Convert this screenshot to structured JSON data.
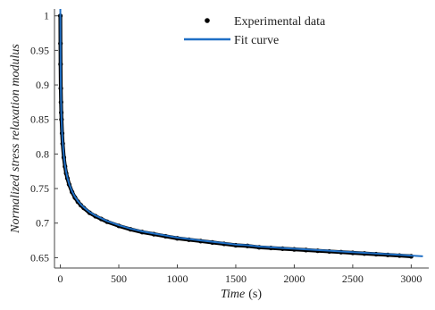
{
  "chart_data": {
    "type": "scatter",
    "xlabel": "Time",
    "xlabel_unit": "(s)",
    "ylabel": "Normalized stress relaxation modulus",
    "xlim": [
      -50,
      3150
    ],
    "ylim": [
      0.635,
      1.01
    ],
    "x_ticks": [
      0,
      500,
      1000,
      1500,
      2000,
      2500,
      3000
    ],
    "x_tick_labels": [
      "0",
      "500",
      "1000",
      "1500",
      "2000",
      "2500",
      "3000"
    ],
    "y_ticks": [
      0.65,
      0.7,
      0.75,
      0.8,
      0.85,
      0.9,
      0.95,
      1.0
    ],
    "y_tick_labels": [
      "0.65",
      "0.7",
      "0.75",
      "0.8",
      "0.85",
      "0.9",
      "0.95",
      "1"
    ],
    "grid": false,
    "legend_position": "top-right",
    "series": [
      {
        "name": "Experimental data",
        "kind": "scatter",
        "color": "#000000",
        "marker": "circle",
        "x": [
          0,
          1,
          2,
          4,
          6,
          8,
          10,
          15,
          20,
          30,
          40,
          50,
          60,
          75,
          100,
          125,
          150,
          175,
          200,
          250,
          300,
          350,
          400,
          500,
          600,
          700,
          800,
          900,
          1000,
          1100,
          1200,
          1300,
          1400,
          1500,
          1600,
          1700,
          1800,
          1900,
          2000,
          2100,
          2200,
          2300,
          2400,
          2500,
          2600,
          2700,
          2800,
          2900,
          3000
        ],
        "y": [
          1.0,
          0.96,
          0.93,
          0.895,
          0.875,
          0.86,
          0.85,
          0.83,
          0.815,
          0.795,
          0.782,
          0.772,
          0.765,
          0.756,
          0.745,
          0.737,
          0.731,
          0.726,
          0.722,
          0.715,
          0.71,
          0.706,
          0.702,
          0.696,
          0.691,
          0.687,
          0.684,
          0.681,
          0.678,
          0.676,
          0.674,
          0.672,
          0.67,
          0.668,
          0.667,
          0.665,
          0.664,
          0.663,
          0.662,
          0.661,
          0.66,
          0.659,
          0.658,
          0.657,
          0.656,
          0.655,
          0.654,
          0.653,
          0.652
        ]
      },
      {
        "name": "Fit curve",
        "kind": "line",
        "color": "#1f6fc5",
        "x": [
          0,
          1,
          2,
          4,
          6,
          8,
          10,
          15,
          20,
          30,
          40,
          50,
          60,
          75,
          100,
          125,
          150,
          175,
          200,
          250,
          300,
          350,
          400,
          500,
          600,
          700,
          800,
          900,
          1000,
          1100,
          1200,
          1300,
          1400,
          1500,
          1600,
          1700,
          1800,
          1900,
          2000,
          2100,
          2200,
          2300,
          2400,
          2500,
          2600,
          2700,
          2800,
          2900,
          3000,
          3100
        ],
        "y": [
          1.01,
          0.97,
          0.94,
          0.9,
          0.878,
          0.863,
          0.852,
          0.832,
          0.817,
          0.797,
          0.784,
          0.774,
          0.766,
          0.757,
          0.746,
          0.738,
          0.732,
          0.727,
          0.723,
          0.716,
          0.711,
          0.707,
          0.703,
          0.697,
          0.692,
          0.688,
          0.685,
          0.682,
          0.679,
          0.677,
          0.675,
          0.673,
          0.671,
          0.669,
          0.668,
          0.666,
          0.665,
          0.664,
          0.663,
          0.662,
          0.661,
          0.66,
          0.659,
          0.658,
          0.657,
          0.656,
          0.655,
          0.654,
          0.653,
          0.652
        ]
      }
    ]
  }
}
